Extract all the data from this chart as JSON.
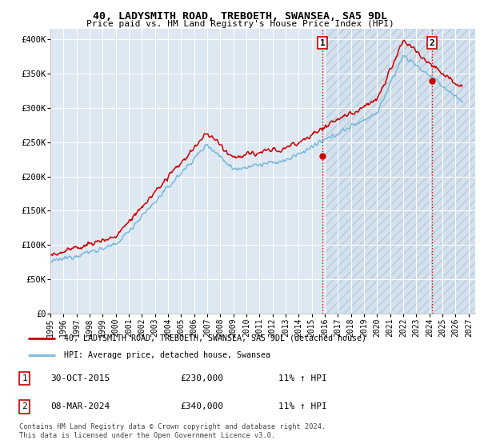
{
  "title": "40, LADYSMITH ROAD, TREBOETH, SWANSEA, SA5 9DL",
  "subtitle": "Price paid vs. HM Land Registry's House Price Index (HPI)",
  "ylabel_ticks": [
    "£0",
    "£50K",
    "£100K",
    "£150K",
    "£200K",
    "£250K",
    "£300K",
    "£350K",
    "£400K"
  ],
  "ytick_values": [
    0,
    50000,
    100000,
    150000,
    200000,
    250000,
    300000,
    350000,
    400000
  ],
  "ylim": [
    0,
    415000
  ],
  "xlim_start": 1995.0,
  "xlim_end": 2027.5,
  "xtick_years": [
    1995,
    1996,
    1997,
    1998,
    1999,
    2000,
    2001,
    2002,
    2003,
    2004,
    2005,
    2006,
    2007,
    2008,
    2009,
    2010,
    2011,
    2012,
    2013,
    2014,
    2015,
    2016,
    2017,
    2018,
    2019,
    2020,
    2021,
    2022,
    2023,
    2024,
    2025,
    2026,
    2027
  ],
  "hpi_color": "#7ab8d9",
  "price_color": "#cc0000",
  "marker_color": "#cc0000",
  "annotation_box_color": "#cc0000",
  "background_color": "#ffffff",
  "plot_bg_color": "#dde8f2",
  "grid_color": "#ffffff",
  "legend_label_red": "40, LADYSMITH ROAD, TREBOETH, SWANSEA, SA5 9DL (detached house)",
  "legend_label_blue": "HPI: Average price, detached house, Swansea",
  "footnote": "Contains HM Land Registry data © Crown copyright and database right 2024.\nThis data is licensed under the Open Government Licence v3.0.",
  "sale1_label": "1",
  "sale1_date": "30-OCT-2015",
  "sale1_price": "£230,000",
  "sale1_hpi": "11% ↑ HPI",
  "sale1_year": 2015.83,
  "sale1_value": 230000,
  "sale2_label": "2",
  "sale2_date": "08-MAR-2024",
  "sale2_price": "£340,000",
  "sale2_hpi": "11% ↑ HPI",
  "sale2_year": 2024.19,
  "sale2_value": 340000,
  "vline_color": "#cc0000",
  "hatch_start": 2016.0
}
